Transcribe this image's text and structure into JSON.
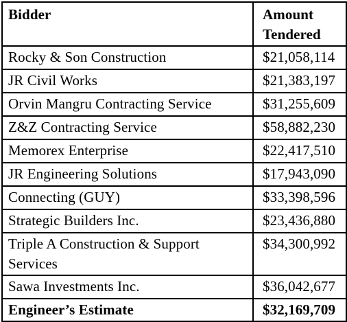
{
  "table": {
    "headers": {
      "bidder": "Bidder",
      "amount": "Amount Tendered"
    },
    "rows": [
      {
        "bidder": "Rocky & Son Construction",
        "amount": "$21,058,114"
      },
      {
        "bidder": "JR Civil Works",
        "amount": "$21,383,197"
      },
      {
        "bidder": "Orvin Mangru Contracting Service",
        "amount": "$31,255,609"
      },
      {
        "bidder": "Z&Z Contracting Service",
        "amount": "$58,882,230"
      },
      {
        "bidder": "Memorex Enterprise",
        "amount": "$22,417,510"
      },
      {
        "bidder": "JR Engineering Solutions",
        "amount": "$17,943,090"
      },
      {
        "bidder": "Connecting (GUY)",
        "amount": "$33,398,596"
      },
      {
        "bidder": "Strategic Builders Inc.",
        "amount": "$23,436,880"
      },
      {
        "bidder": "Triple A Construction & Support Services",
        "amount": "$34,300,992"
      },
      {
        "bidder": "Sawa Investments Inc.",
        "amount": "$36,042,677"
      }
    ],
    "total": {
      "bidder": "Engineer’s Estimate",
      "amount": "$32,169,709"
    }
  }
}
